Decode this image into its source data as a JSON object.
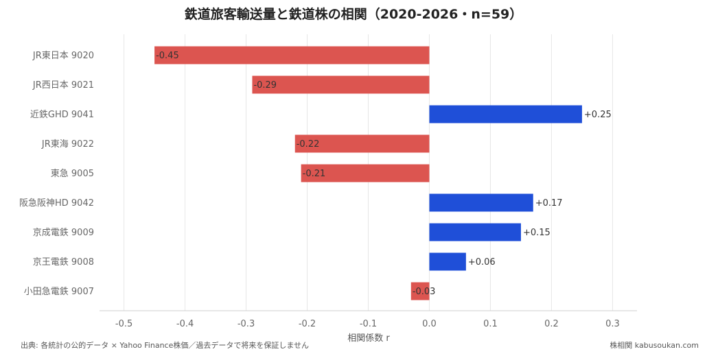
{
  "chart_data": {
    "type": "bar",
    "orientation": "horizontal",
    "title": "鉄道旅客輸送量と鉄道株の相関（2020-2026・n=59）",
    "xlabel": "相関係数 r",
    "ylabel": "",
    "xlim": [
      -0.54,
      0.34
    ],
    "x_ticks": [
      -0.5,
      -0.4,
      -0.3,
      -0.2,
      -0.1,
      0.0,
      0.1,
      0.2,
      0.3
    ],
    "x_tick_labels": [
      "-0.5",
      "-0.4",
      "-0.3",
      "-0.2",
      "-0.1",
      "0.0",
      "0.1",
      "0.2",
      "0.3"
    ],
    "grid": true,
    "categories": [
      "JR東日本 9020",
      "JR西日本 9021",
      "近鉄GHD 9041",
      "JR東海 9022",
      "東急 9005",
      "阪急阪神HD 9042",
      "京成電鉄 9009",
      "京王電鉄 9008",
      "小田急電鉄 9007"
    ],
    "values": [
      -0.45,
      -0.29,
      0.25,
      -0.22,
      -0.21,
      0.17,
      0.15,
      0.06,
      -0.03
    ],
    "value_labels": [
      "-0.45",
      "-0.29",
      "+0.25",
      "-0.22",
      "-0.21",
      "+0.17",
      "+0.15",
      "+0.06",
      "-0.03"
    ],
    "colors": {
      "negative": "#dc5550",
      "positive": "#1f4fd8"
    }
  },
  "footer": {
    "source": "出典: 各統計の公的データ × Yahoo Finance株価／過去データで将来を保証しません",
    "credit": "株相関 kabusoukan.com"
  }
}
